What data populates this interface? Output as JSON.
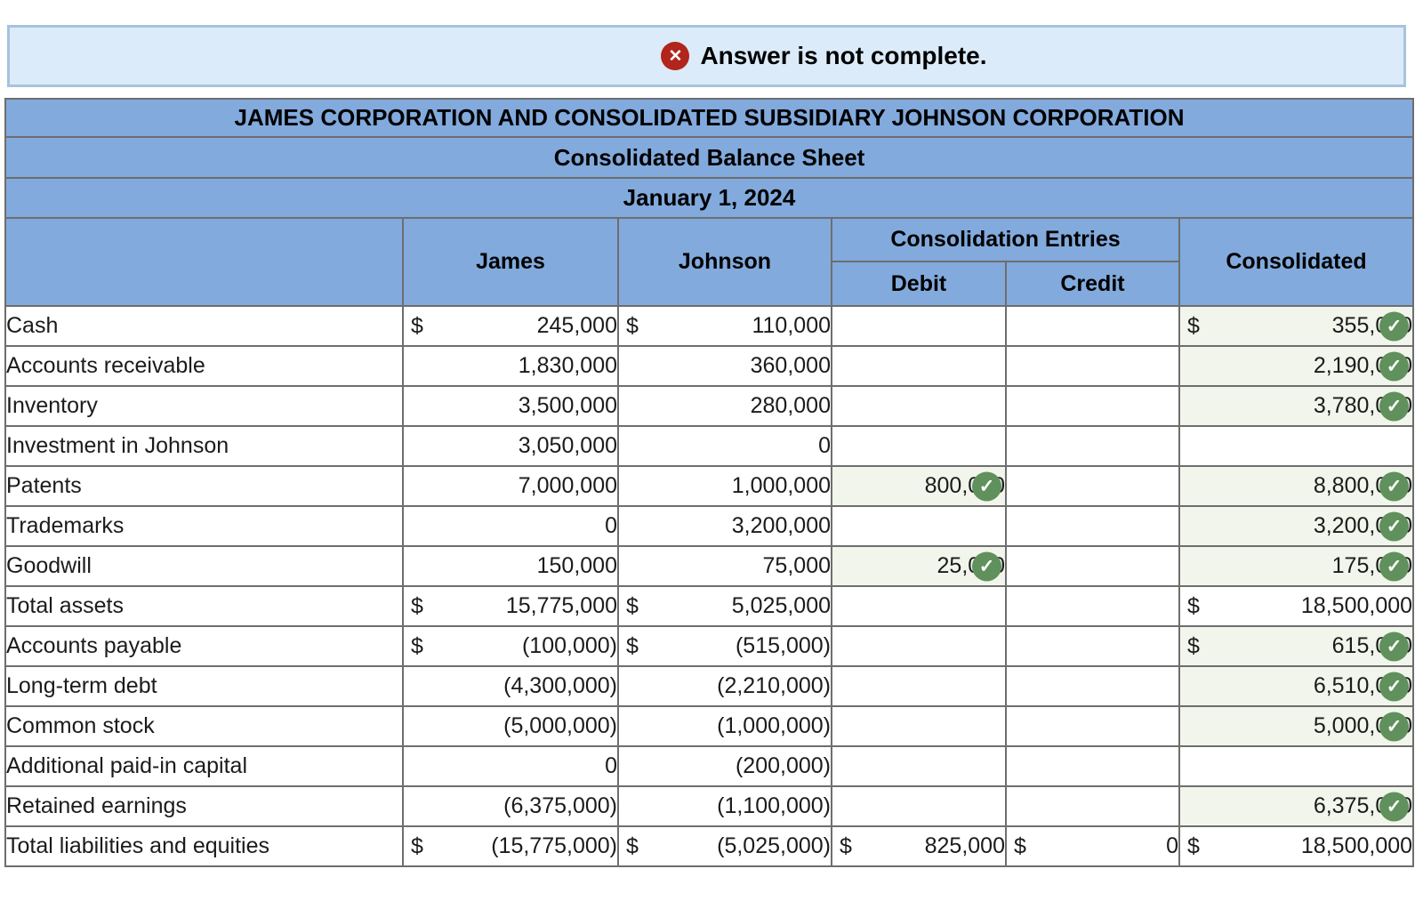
{
  "banner": {
    "text": "Answer is not complete.",
    "bg_color": "#dcebf9",
    "border_color": "#a8c2dc",
    "error_color": "#b1251b"
  },
  "icons": {
    "error_glyph": "✕",
    "check_glyph": "✓"
  },
  "colors": {
    "header_blue": "#82aadd",
    "grid_gray": "#6e6e6e",
    "check_green": "#60905c",
    "answered_tint": "#f1f5eb"
  },
  "table": {
    "title": "JAMES CORPORATION AND CONSOLIDATED SUBSIDIARY JOHNSON CORPORATION",
    "subtitle": "Consolidated Balance Sheet",
    "date": "January 1, 2024",
    "columns": {
      "james": "James",
      "johnson": "Johnson",
      "entries_group": "Consolidation Entries",
      "debit": "Debit",
      "credit": "Credit",
      "consolidated": "Consolidated"
    },
    "rows": [
      {
        "label": "Cash",
        "james": {
          "d": "$",
          "v": "245,000"
        },
        "johnson": {
          "d": "$",
          "v": "110,000"
        },
        "debit": null,
        "credit": null,
        "consolidated": {
          "d": "$",
          "v": "355,000",
          "check": true
        }
      },
      {
        "label": "Accounts receivable",
        "james": {
          "v": "1,830,000"
        },
        "johnson": {
          "v": "360,000"
        },
        "debit": null,
        "credit": null,
        "consolidated": {
          "v": "2,190,000",
          "check": true
        }
      },
      {
        "label": "Inventory",
        "james": {
          "v": "3,500,000"
        },
        "johnson": {
          "v": "280,000"
        },
        "debit": null,
        "credit": null,
        "consolidated": {
          "v": "3,780,000",
          "check": true
        }
      },
      {
        "label": "Investment in Johnson",
        "james": {
          "v": "3,050,000"
        },
        "johnson": {
          "v": "0"
        },
        "debit": null,
        "credit": null,
        "consolidated": null
      },
      {
        "label": "Patents",
        "james": {
          "v": "7,000,000"
        },
        "johnson": {
          "v": "1,000,000"
        },
        "debit": {
          "v": "800,000",
          "check": true
        },
        "credit": null,
        "consolidated": {
          "v": "8,800,000",
          "check": true
        }
      },
      {
        "label": "Trademarks",
        "james": {
          "v": "0"
        },
        "johnson": {
          "v": "3,200,000"
        },
        "debit": null,
        "credit": null,
        "consolidated": {
          "v": "3,200,000",
          "check": true
        }
      },
      {
        "label": "Goodwill",
        "james": {
          "v": "150,000"
        },
        "johnson": {
          "v": "75,000"
        },
        "debit": {
          "v": "25,000",
          "check": true
        },
        "credit": null,
        "consolidated": {
          "v": "175,000",
          "check": true
        }
      },
      {
        "label": "Total assets",
        "total": "assets",
        "james": {
          "d": "$",
          "v": "15,775,000"
        },
        "johnson": {
          "d": "$",
          "v": "5,025,000"
        },
        "debit": null,
        "credit": null,
        "consolidated": {
          "d": "$",
          "v": "18,500,000"
        }
      },
      {
        "label": "Accounts payable",
        "james": {
          "d": "$",
          "v": "(100,000)"
        },
        "johnson": {
          "d": "$",
          "v": "(515,000)"
        },
        "debit": null,
        "credit": null,
        "consolidated": {
          "d": "$",
          "v": "615,000",
          "check": true
        }
      },
      {
        "label": "Long-term debt",
        "james": {
          "v": "(4,300,000)"
        },
        "johnson": {
          "v": "(2,210,000)"
        },
        "debit": null,
        "credit": null,
        "consolidated": {
          "v": "6,510,000",
          "check": true
        }
      },
      {
        "label": "Common stock",
        "james": {
          "v": "(5,000,000)"
        },
        "johnson": {
          "v": "(1,000,000)"
        },
        "debit": null,
        "credit": null,
        "consolidated": {
          "v": "5,000,000",
          "check": true
        }
      },
      {
        "label": "Additional paid-in capital",
        "james": {
          "v": "0"
        },
        "johnson": {
          "v": "(200,000)"
        },
        "debit": null,
        "credit": null,
        "consolidated": null
      },
      {
        "label": "Retained earnings",
        "james": {
          "v": "(6,375,000)"
        },
        "johnson": {
          "v": "(1,100,000)"
        },
        "debit": null,
        "credit": null,
        "consolidated": {
          "v": "6,375,000",
          "check": true
        }
      },
      {
        "label": "Total liabilities and equities",
        "total": "liabilities",
        "james": {
          "d": "$",
          "v": "(15,775,000)"
        },
        "johnson": {
          "d": "$",
          "v": "(5,025,000)"
        },
        "debit": {
          "d": "$",
          "v": "825,000"
        },
        "credit": {
          "d": "$",
          "v": "0"
        },
        "consolidated": {
          "d": "$",
          "v": "18,500,000"
        }
      }
    ]
  }
}
